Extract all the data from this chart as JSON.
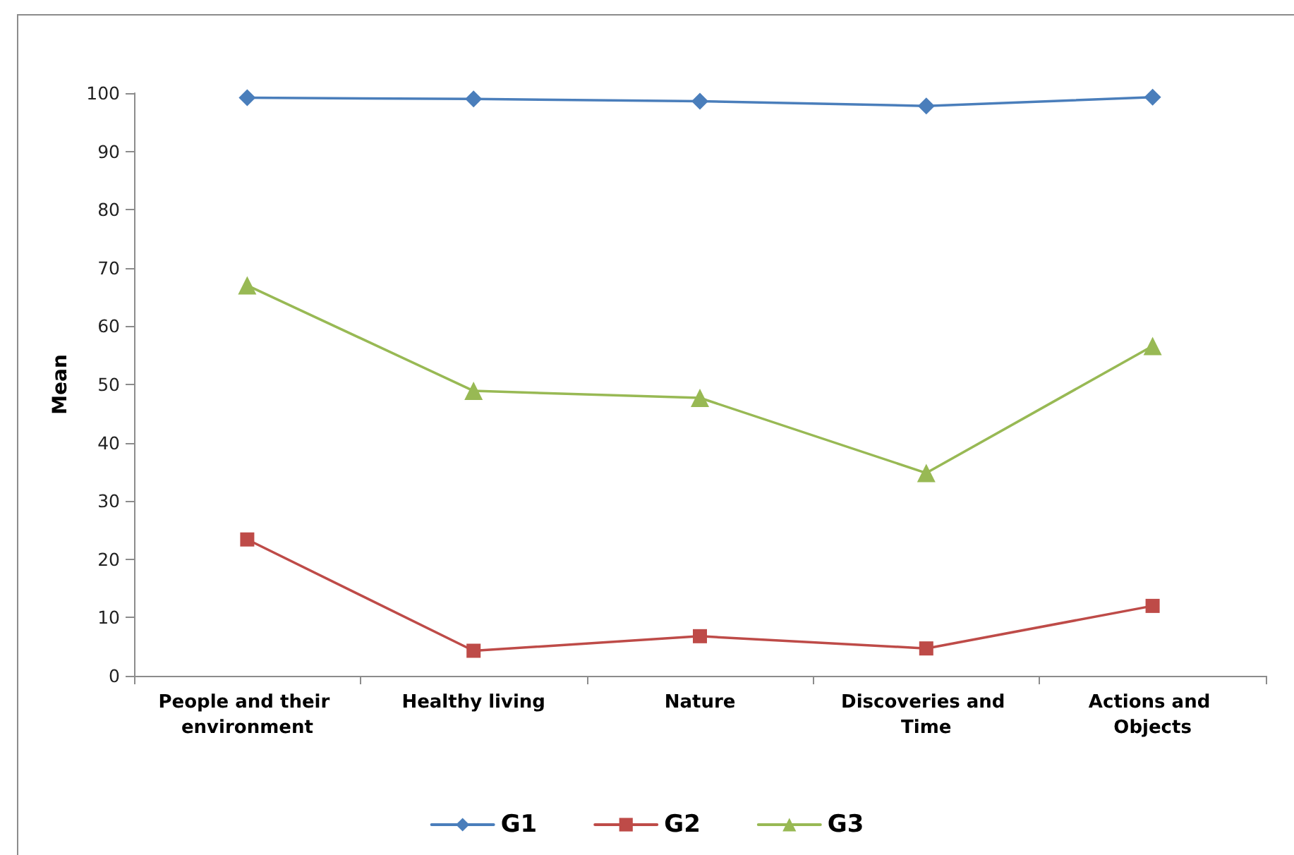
{
  "chart_data": {
    "type": "line",
    "ylabel": "Mean",
    "categories": [
      "People and their environment",
      "Healthy living",
      "Nature",
      "Discoveries and Time",
      "Actions and Objects"
    ],
    "series": [
      {
        "name": "G1",
        "color": "#4a7ebb",
        "marker": "diamond",
        "values": [
          99.2,
          99.0,
          98.6,
          97.8,
          99.3
        ]
      },
      {
        "name": "G2",
        "color": "#be4b48",
        "marker": "square",
        "values": [
          23.4,
          4.3,
          6.8,
          4.7,
          12.0
        ]
      },
      {
        "name": "G3",
        "color": "#98b954",
        "marker": "triangle",
        "values": [
          67.0,
          48.9,
          47.7,
          34.8,
          56.6
        ]
      }
    ],
    "ylim": [
      0,
      100
    ],
    "yticks": [
      0,
      10,
      20,
      30,
      40,
      50,
      60,
      70,
      80,
      90,
      100
    ],
    "grid": false,
    "legend": "bottom",
    "line_style": "solid"
  }
}
